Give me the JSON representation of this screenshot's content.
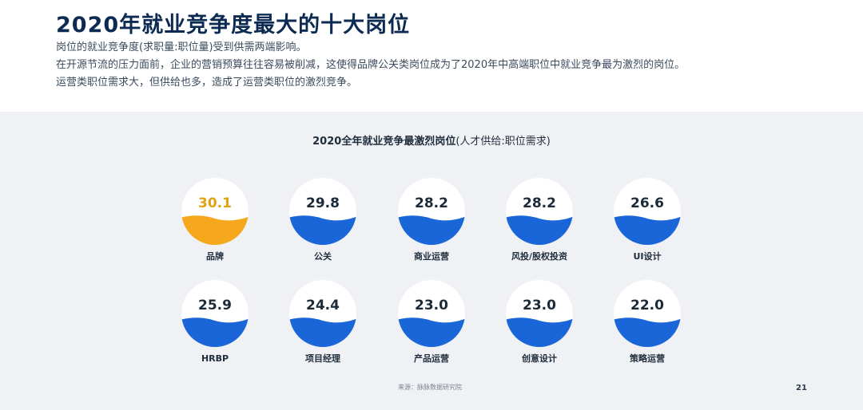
{
  "header": {
    "title": "2020年就业竞争度最大的十大岗位",
    "lines": [
      "岗位的就业竞争度(求职量:职位量)受到供需两端影响。",
      "在开源节流的压力面前，企业的营销预算往往容易被削减，这使得品牌公关类岗位成为了2020年中高端职位中就业竞争最为激烈的岗位。",
      "运营类职位需求大，但供给也多，造成了运营类职位的激烈竞争。"
    ]
  },
  "chart_data": {
    "type": "bubble",
    "title": "2020全年就业竞争最激烈岗位",
    "subtitle": "(人才供给:职位需求)",
    "categories": [
      "品牌",
      "公关",
      "商业运营",
      "风投/股权投资",
      "UI设计",
      "HRBP",
      "项目经理",
      "产品运营",
      "创意设计",
      "策略运营"
    ],
    "values": [
      30.1,
      29.8,
      28.2,
      28.2,
      26.6,
      25.9,
      24.4,
      23.0,
      23.0,
      22.0
    ],
    "highlight_index": 0,
    "colors": {
      "highlight_fill": "#f5a81c",
      "highlight_text": "#e0a216",
      "fill": "#1a66d9",
      "value_text": "#1c2b3a",
      "circle_bg": "#ffffff"
    }
  },
  "footer": {
    "source": "来源：脉脉数据研究院",
    "page": "21"
  }
}
